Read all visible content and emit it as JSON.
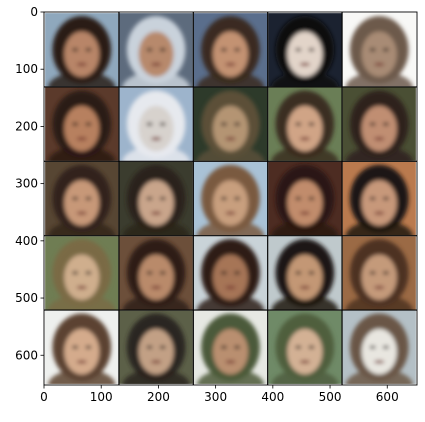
{
  "chart_data": {
    "type": "image",
    "title": "",
    "xlabel": "",
    "ylabel": "",
    "xlim": [
      0,
      652
    ],
    "ylim": [
      652,
      0
    ],
    "grid": false,
    "xticks": [
      {
        "value": 0,
        "label": "0"
      },
      {
        "value": 100,
        "label": "100"
      },
      {
        "value": 200,
        "label": "200"
      },
      {
        "value": 300,
        "label": "300"
      },
      {
        "value": 400,
        "label": "400"
      },
      {
        "value": 500,
        "label": "500"
      },
      {
        "value": 600,
        "label": "600"
      }
    ],
    "yticks": [
      {
        "value": 0,
        "label": "0"
      },
      {
        "value": 100,
        "label": "100"
      },
      {
        "value": 200,
        "label": "200"
      },
      {
        "value": 300,
        "label": "300"
      },
      {
        "value": 400,
        "label": "400"
      },
      {
        "value": 500,
        "label": "500"
      },
      {
        "value": 600,
        "label": "600"
      }
    ],
    "grid_rows": 5,
    "grid_cols": 5,
    "tile_size": 128,
    "tile_padding": 2,
    "separator_color": "#000000",
    "tiles": [
      {
        "bg": "#8fa8bd",
        "face": "#b88567",
        "hair": "#2a1c16"
      },
      {
        "bg": "#5d6b7d",
        "face": "#b7896c",
        "hair": "#c9d2db"
      },
      {
        "bg": "#5a6e8c",
        "face": "#c39272",
        "hair": "#3a2a20"
      },
      {
        "bg": "#1b2230",
        "face": "#e2d4c9",
        "hair": "#0e0d10"
      },
      {
        "bg": "#f8f8f6",
        "face": "#a88b74",
        "hair": "#6d5a4c"
      },
      {
        "bg": "#5b3a2b",
        "face": "#b7805e",
        "hair": "#2c1a13"
      },
      {
        "bg": "#9db4cc",
        "face": "#d7d2cd",
        "hair": "#e6e9ee"
      },
      {
        "bg": "#2d3a2a",
        "face": "#b49473",
        "hair": "#5b5038"
      },
      {
        "bg": "#6a7e56",
        "face": "#d0a486",
        "hair": "#3b2d20"
      },
      {
        "bg": "#4a4f34",
        "face": "#c08e72",
        "hair": "#2e221c"
      },
      {
        "bg": "#574633",
        "face": "#c79878",
        "hair": "#33241b"
      },
      {
        "bg": "#3b3c2e",
        "face": "#c9a58b",
        "hair": "#2a241a"
      },
      {
        "bg": "#a9c2d6",
        "face": "#c89f7e",
        "hair": "#7a5a40"
      },
      {
        "bg": "#4d2c22",
        "face": "#c18c6c",
        "hair": "#2a1812"
      },
      {
        "bg": "#ba7a4e",
        "face": "#c7987a",
        "hair": "#1d1612"
      },
      {
        "bg": "#6f7d53",
        "face": "#cfae8d",
        "hair": "#7a6b45"
      },
      {
        "bg": "#6c4f3a",
        "face": "#b98a6a",
        "hair": "#2e1d16"
      },
      {
        "bg": "#c9d3d8",
        "face": "#a67456",
        "hair": "#2e1f18"
      },
      {
        "bg": "#bfc9cc",
        "face": "#c39774",
        "hair": "#1c1612"
      },
      {
        "bg": "#9b6a45",
        "face": "#c49a7a",
        "hair": "#4e3322"
      },
      {
        "bg": "#eef0ee",
        "face": "#d4ab8c",
        "hair": "#5c4230"
      },
      {
        "bg": "#5c6048",
        "face": "#c2a085",
        "hair": "#2b2520"
      },
      {
        "bg": "#e6e8e3",
        "face": "#b98f6f",
        "hair": "#4c5a3a"
      },
      {
        "bg": "#6f8a67",
        "face": "#d3b194",
        "hair": "#4f5e3e"
      },
      {
        "bg": "#b4c0c6",
        "face": "#e8e6e0",
        "hair": "#6b5746"
      }
    ]
  }
}
